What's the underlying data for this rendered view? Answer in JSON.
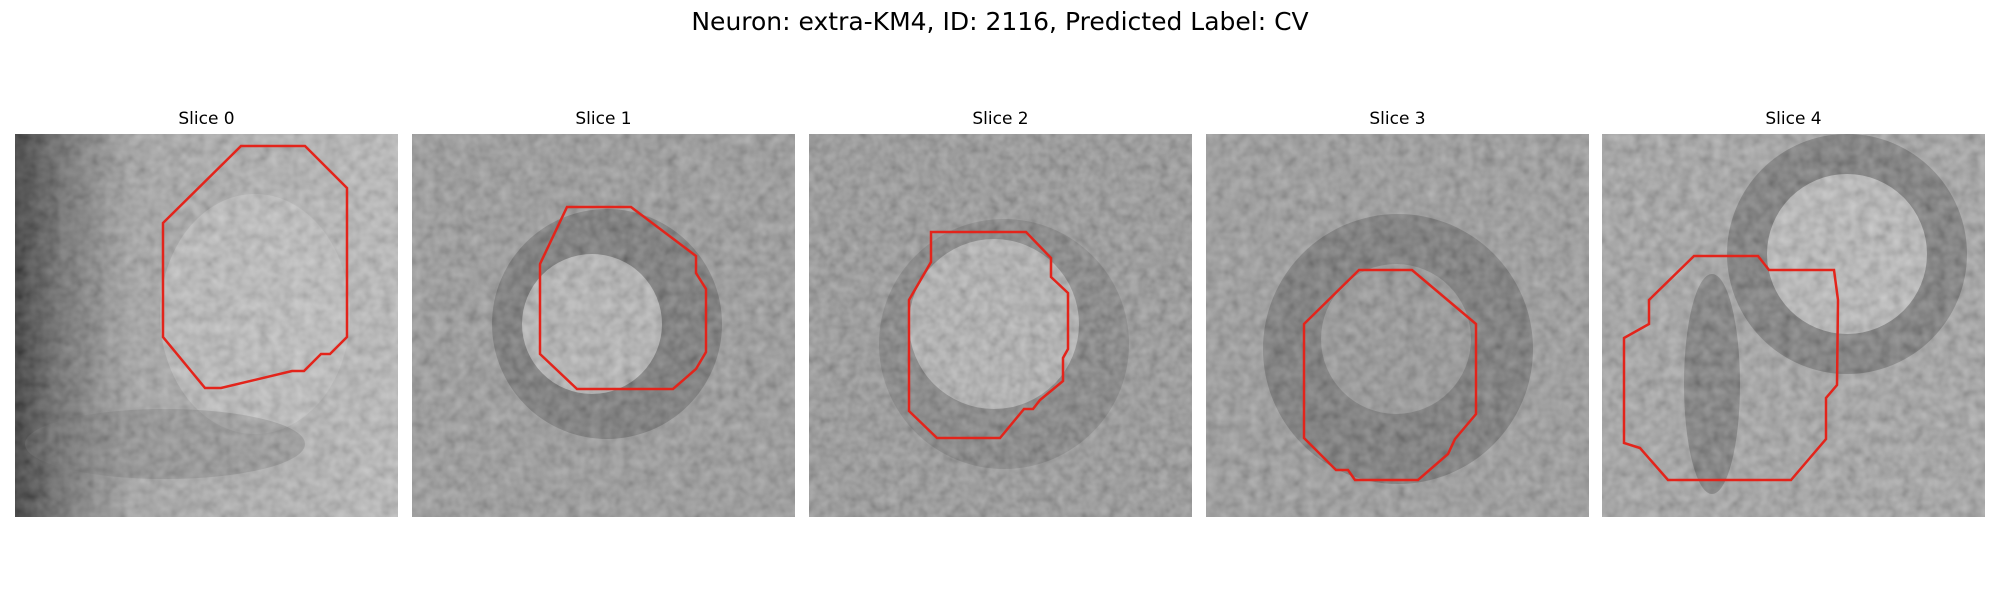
{
  "title": "Neuron: extra-KM4, ID: 2116, Predicted Label: CV",
  "colors": {
    "contour": "#e3241b"
  },
  "panels": [
    {
      "title": "Slice 0"
    },
    {
      "title": "Slice 1"
    },
    {
      "title": "Slice 2"
    },
    {
      "title": "Slice 3"
    },
    {
      "title": "Slice 4"
    }
  ]
}
